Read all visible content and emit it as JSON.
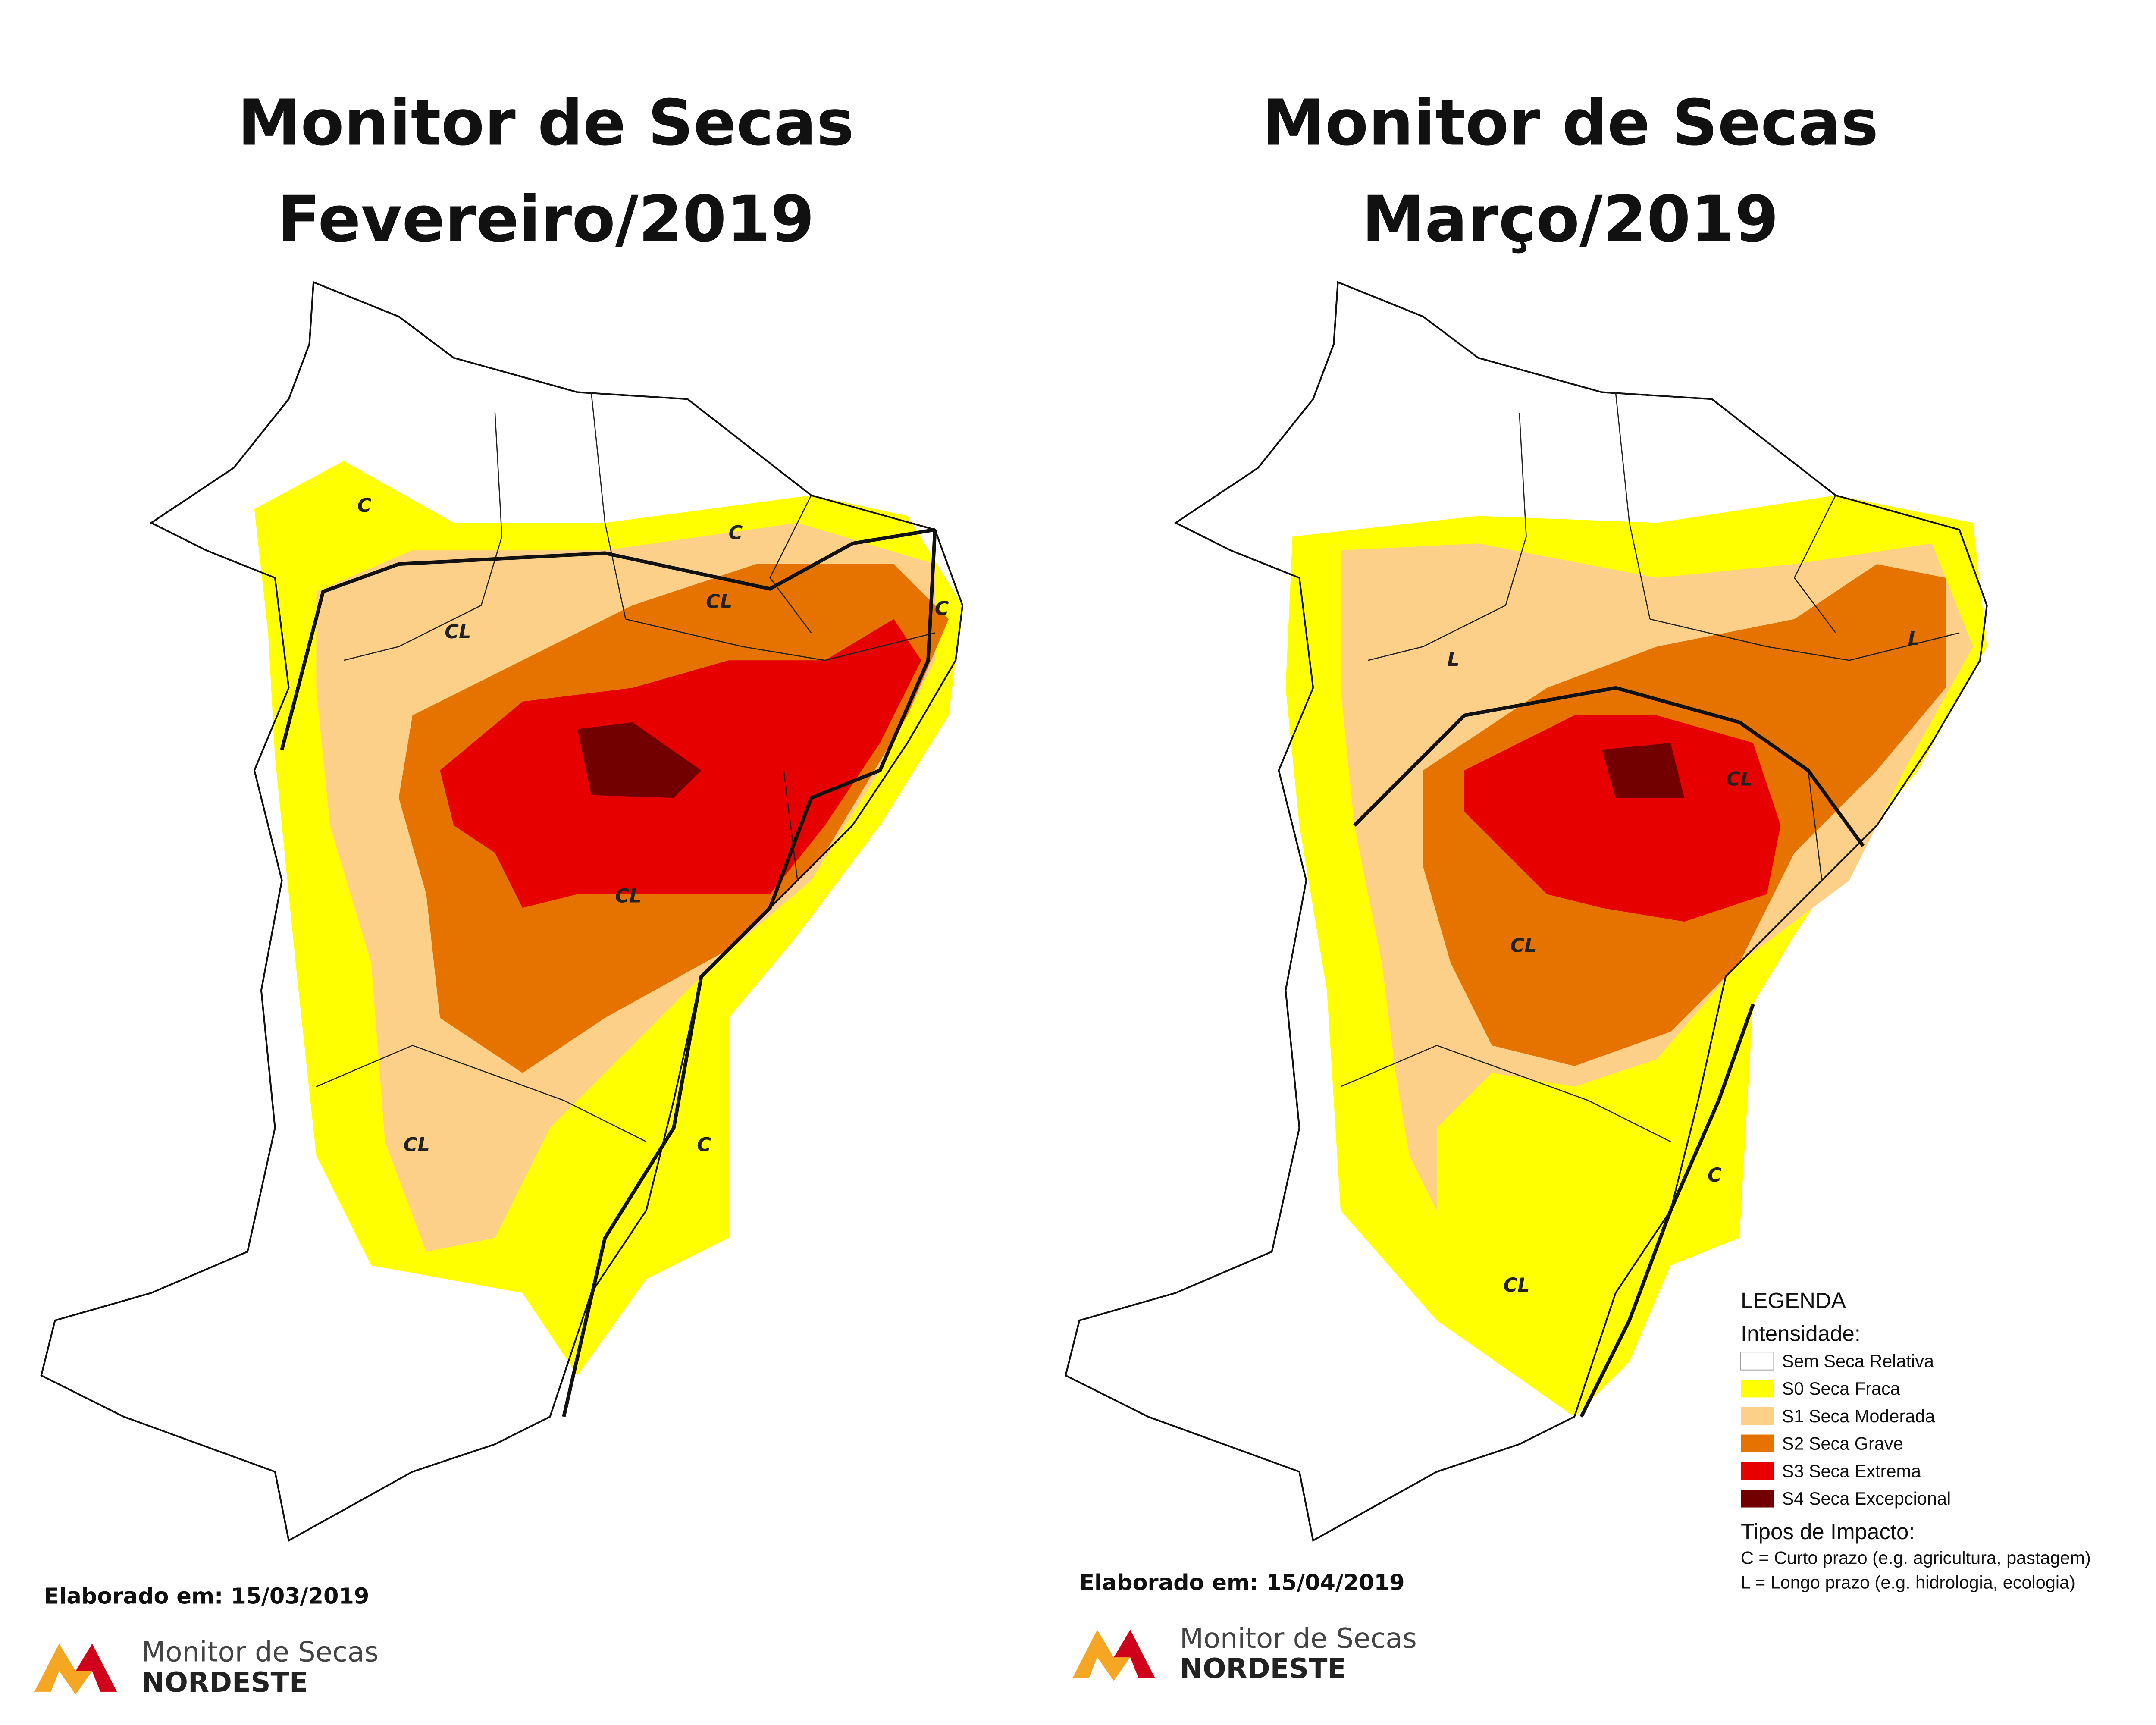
{
  "maps": [
    {
      "title": [
        "Monitor de Secas",
        "Fevereiro/2019"
      ],
      "impact_labels": [
        "C",
        "CL",
        "C",
        "CL",
        "C",
        "CL",
        "CL",
        "C"
      ],
      "elaborated": "Elaborado em: 15/03/2019",
      "logo": {
        "line1": "Monitor de Secas",
        "line2": "NORDESTE"
      }
    },
    {
      "title": [
        "Monitor de Secas",
        "Março/2019"
      ],
      "impact_labels": [
        "L",
        "L",
        "CL",
        "CL",
        "C",
        "CL"
      ],
      "elaborated": "Elaborado em: 15/04/2019",
      "logo": {
        "line1": "Monitor de Secas",
        "line2": "NORDESTE"
      }
    }
  ],
  "legend": {
    "title": "LEGENDA",
    "intensity_title": "Intensidade:",
    "items": [
      {
        "label": "Sem Seca Relativa",
        "color": "#ffffff"
      },
      {
        "label": "S0 Seca Fraca",
        "color": "#ffff00"
      },
      {
        "label": "S1 Seca Moderada",
        "color": "#fcd088"
      },
      {
        "label": "S2 Seca Grave",
        "color": "#e67300"
      },
      {
        "label": "S3 Seca Extrema",
        "color": "#e60000"
      },
      {
        "label": "S4 Seca Excepcional",
        "color": "#730000"
      }
    ],
    "impact_title": "Tipos de Impacto:",
    "impacts": [
      "C = Curto prazo (e.g. agricultura, pastagem)",
      "L = Longo prazo (e.g. hidrologia, ecologia)"
    ]
  }
}
